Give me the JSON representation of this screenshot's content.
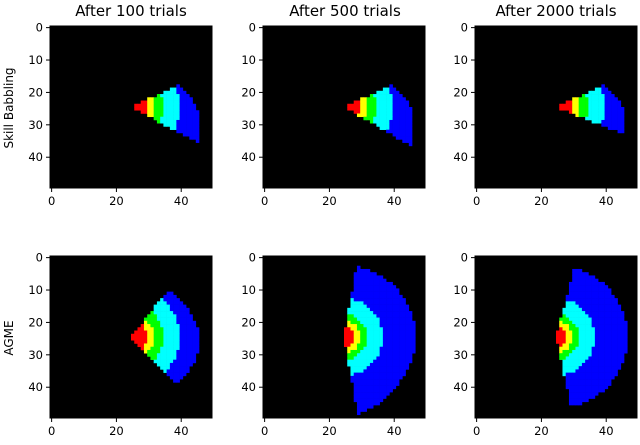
{
  "chart_data": {
    "type": "heatmap",
    "grid": {
      "rows": 50,
      "cols": 50
    },
    "xticks": [
      0,
      20,
      40
    ],
    "yticks": [
      0,
      10,
      20,
      30,
      40
    ],
    "background_color": "#000000",
    "colors": {
      "1": "#ff0000",
      "2": "#ffff00",
      "3": "#00ff00",
      "4": "#00ffff",
      "5": "#0000ff"
    },
    "origin": [
      25,
      25
    ],
    "column_titles": [
      "After 100 trials",
      "After 500 trials",
      "After 2000 trials"
    ],
    "row_labels": [
      "Skill Babbling",
      "AGME"
    ],
    "panels": [
      {
        "row": 0,
        "col": 0,
        "angle_range_deg": [
          -25,
          28
        ],
        "radii": [
          {
            "dist": 5,
            "band": 1
          },
          {
            "dist": 7,
            "band": 2
          },
          {
            "dist": 10,
            "band": 3
          },
          {
            "dist": 13,
            "band": 4
          },
          {
            "dist": 15,
            "band": 4
          },
          {
            "dist": 20,
            "band": 5
          }
        ],
        "max_dist_by_angle": [
          [
            -25,
            16
          ],
          [
            -14,
            18
          ],
          [
            -5,
            19
          ],
          [
            5,
            21
          ],
          [
            15,
            22
          ],
          [
            28,
            24
          ]
        ]
      },
      {
        "row": 0,
        "col": 1,
        "angle_range_deg": [
          -25,
          30
        ],
        "radii": [
          {
            "dist": 5,
            "band": 1
          },
          {
            "dist": 7,
            "band": 2
          },
          {
            "dist": 10,
            "band": 3
          },
          {
            "dist": 13,
            "band": 4
          },
          {
            "dist": 15,
            "band": 4
          },
          {
            "dist": 20,
            "band": 5
          }
        ],
        "max_dist_by_angle": [
          [
            -25,
            16
          ],
          [
            -14,
            18
          ],
          [
            -5,
            20
          ],
          [
            5,
            21
          ],
          [
            15,
            22
          ],
          [
            30,
            24
          ]
        ]
      },
      {
        "row": 0,
        "col": 2,
        "angle_range_deg": [
          -25,
          22
        ],
        "radii": [
          {
            "dist": 5,
            "band": 1
          },
          {
            "dist": 7,
            "band": 2
          },
          {
            "dist": 10,
            "band": 3
          },
          {
            "dist": 13,
            "band": 4
          },
          {
            "dist": 15,
            "band": 4
          },
          {
            "dist": 20,
            "band": 5
          }
        ],
        "max_dist_by_angle": [
          [
            -25,
            16
          ],
          [
            -14,
            18
          ],
          [
            -5,
            20
          ],
          [
            5,
            21
          ],
          [
            15,
            22
          ],
          [
            22,
            22
          ]
        ]
      },
      {
        "row": 1,
        "col": 0,
        "angle_range_deg": [
          -52,
          45
        ],
        "radii": [
          {
            "dist": 5,
            "band": 1
          },
          {
            "dist": 7,
            "band": 2
          },
          {
            "dist": 10,
            "band": 3
          },
          {
            "dist": 13,
            "band": 4
          },
          {
            "dist": 15,
            "band": 4
          },
          {
            "dist": 20,
            "band": 5
          }
        ],
        "max_dist_by_angle": [
          [
            -52,
            18
          ],
          [
            -40,
            19
          ],
          [
            -20,
            20
          ],
          [
            0,
            21
          ],
          [
            20,
            21
          ],
          [
            45,
            20
          ]
        ]
      },
      {
        "row": 1,
        "col": 1,
        "angle_range_deg": [
          -80,
          80
        ],
        "radii": [
          {
            "dist": 3,
            "band": 1
          },
          {
            "dist": 5,
            "band": 2
          },
          {
            "dist": 7,
            "band": 3
          },
          {
            "dist": 9,
            "band": 4
          },
          {
            "dist": 12,
            "band": 4
          },
          {
            "dist": 22,
            "band": 5
          }
        ],
        "max_dist_by_angle": [
          [
            -80,
            22
          ],
          [
            -40,
            22
          ],
          [
            0,
            22
          ],
          [
            40,
            22
          ],
          [
            80,
            24
          ]
        ]
      },
      {
        "row": 1,
        "col": 2,
        "angle_range_deg": [
          -75,
          78
        ],
        "radii": [
          {
            "dist": 3,
            "band": 1
          },
          {
            "dist": 5,
            "band": 2
          },
          {
            "dist": 7,
            "band": 3
          },
          {
            "dist": 9,
            "band": 4
          },
          {
            "dist": 12,
            "band": 4
          },
          {
            "dist": 22,
            "band": 5
          }
        ],
        "max_dist_by_angle": [
          [
            -75,
            22
          ],
          [
            -40,
            22
          ],
          [
            0,
            22
          ],
          [
            40,
            22
          ],
          [
            78,
            22
          ]
        ]
      }
    ]
  }
}
